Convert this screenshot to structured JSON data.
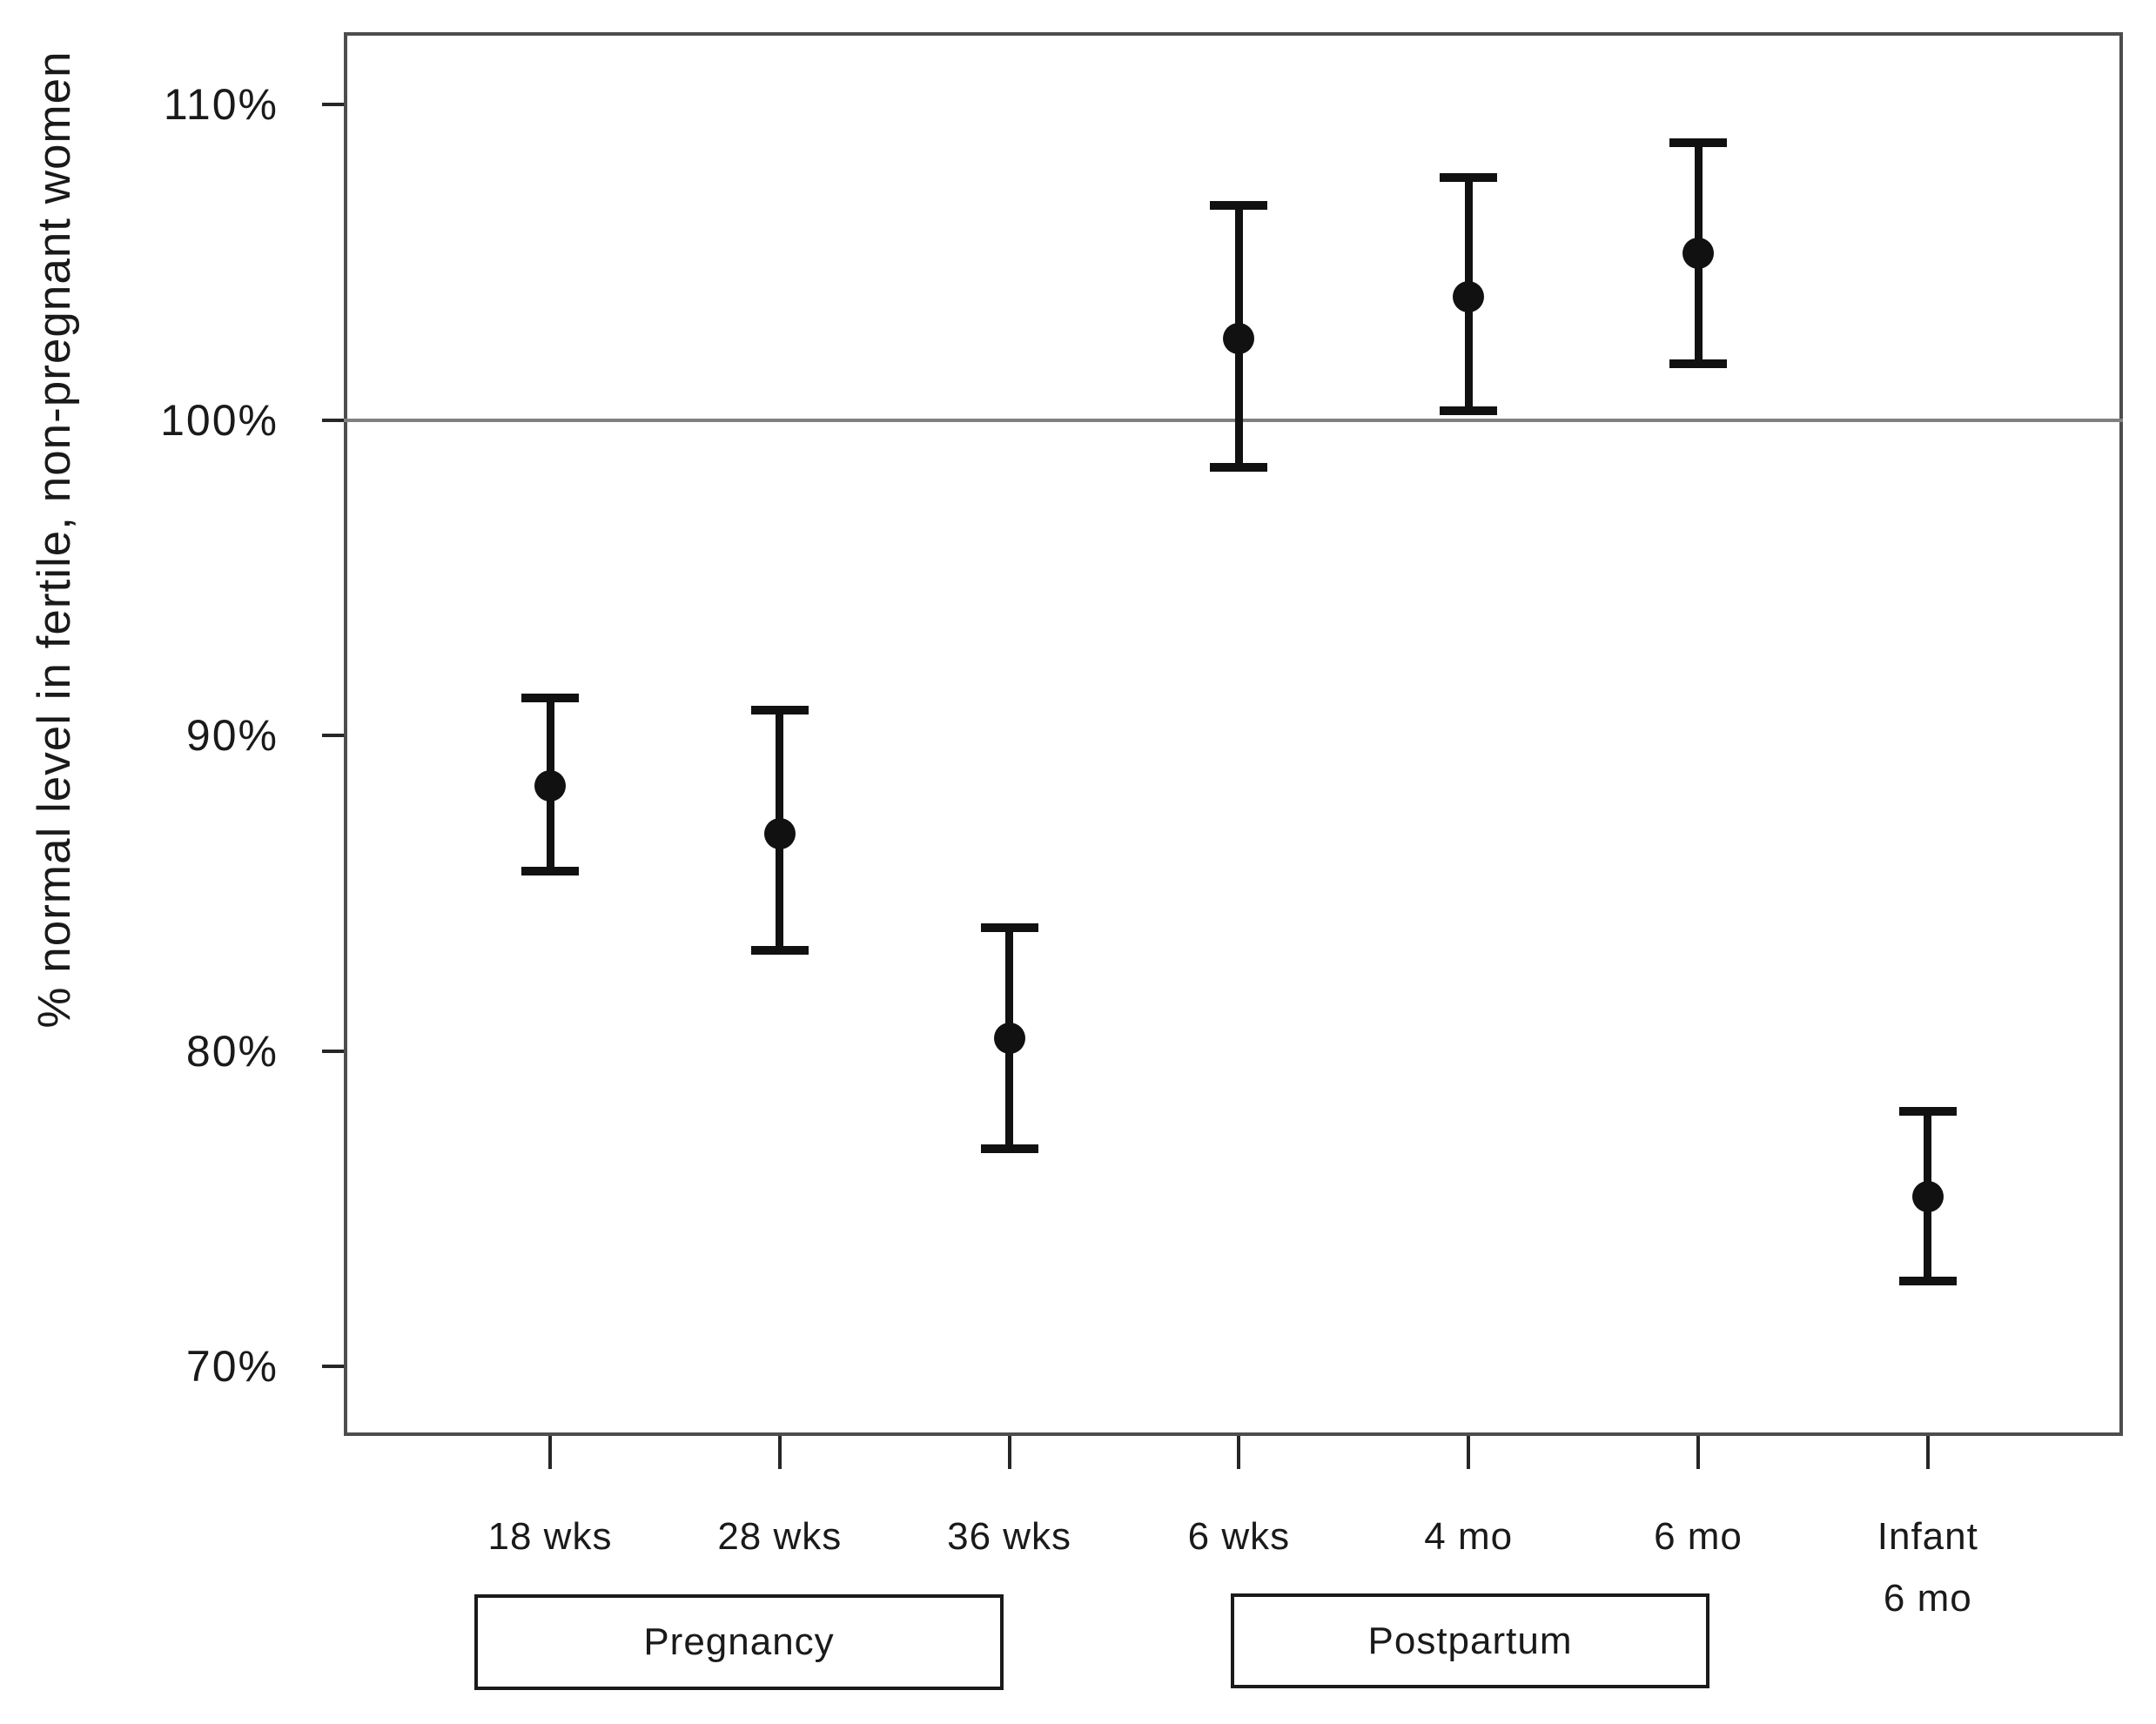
{
  "chart_data": {
    "type": "scatter",
    "title": "",
    "ylabel": "% normal level in fertile, non-pregnant women",
    "xlabel": "",
    "categories": [
      "18 wks",
      "28 wks",
      "36 wks",
      "6 wks",
      "4 mo",
      "6 mo",
      "Infant 6 mo"
    ],
    "x_tick_labels": [
      [
        "18 wks"
      ],
      [
        "28 wks"
      ],
      [
        "36 wks"
      ],
      [
        "6 wks"
      ],
      [
        "4 mo"
      ],
      [
        "6 mo"
      ],
      [
        "Infant",
        "6 mo"
      ]
    ],
    "series": [
      {
        "name": "mean with error bars",
        "means": [
          88.4,
          86.9,
          80.4,
          102.6,
          103.9,
          105.3,
          75.4
        ],
        "ci_low": [
          85.7,
          83.2,
          76.9,
          98.5,
          100.3,
          101.8,
          72.7
        ],
        "ci_high": [
          91.2,
          90.8,
          83.9,
          106.8,
          107.7,
          108.8,
          78.1
        ]
      }
    ],
    "y_ticks": [
      {
        "label": "110%",
        "value": 110
      },
      {
        "label": "100%",
        "value": 100
      },
      {
        "label": "90%",
        "value": 90
      },
      {
        "label": "80%",
        "value": 80
      },
      {
        "label": "70%",
        "value": 70
      }
    ],
    "ylim": [
      67.8,
      112.3
    ],
    "reference_line_value": 100,
    "grid": false,
    "legend": "none",
    "group_labels": [
      {
        "label": "Pregnancy",
        "categories": [
          "18 wks",
          "28 wks",
          "36 wks"
        ]
      },
      {
        "label": "Postpartum",
        "categories": [
          "6 wks",
          "4 mo",
          "6 mo"
        ]
      }
    ],
    "colors": {
      "marker": "#111111",
      "axis": "#4d4d4d",
      "reference_line": "#808080",
      "text": "#1a1a1a",
      "background": "#ffffff"
    }
  }
}
